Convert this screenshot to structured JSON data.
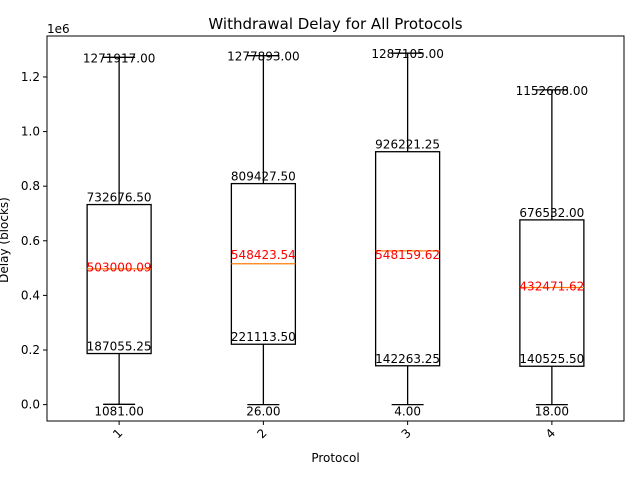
{
  "chart_data": {
    "type": "box",
    "title": "Withdrawal Delay for All Protocols",
    "xlabel": "Protocol",
    "ylabel": "Delay (blocks)",
    "y_scale_label": "1e6",
    "ylim": [
      -60000,
      1350000
    ],
    "y_ticks": [
      0,
      200000,
      400000,
      600000,
      800000,
      1000000,
      1200000
    ],
    "y_tick_labels": [
      "0.0",
      "0.2",
      "0.4",
      "0.6",
      "0.8",
      "1.0",
      "1.2"
    ],
    "grid": false,
    "categories": [
      "1",
      "2",
      "3",
      "4"
    ],
    "boxes": [
      {
        "category": "1",
        "min": 1081.0,
        "q1": 187055.25,
        "median": 497000,
        "q3": 732676.5,
        "max": 1271917.0,
        "mean": 503000.09,
        "min_label": "1081.00",
        "q1_label": "187055.25",
        "mean_label": "503000.09",
        "q3_label": "732676.50",
        "max_label": "1271917.00"
      },
      {
        "category": "2",
        "min": 26.0,
        "q1": 221113.5,
        "median": 516000,
        "q3": 809427.5,
        "max": 1277893.0,
        "mean": 548423.54,
        "min_label": "26.00",
        "q1_label": "221113.50",
        "mean_label": "548423.54",
        "q3_label": "809427.50",
        "max_label": "1277893.00"
      },
      {
        "category": "3",
        "min": 4.0,
        "q1": 142263.25,
        "median": 563000,
        "q3": 926221.25,
        "max": 1287105.0,
        "mean": 548159.62,
        "min_label": "4.00",
        "q1_label": "142263.25",
        "mean_label": "548159.62",
        "q3_label": "926221.25",
        "max_label": "1287105.00"
      },
      {
        "category": "4",
        "min": 18.0,
        "q1": 140525.5,
        "median": 429000,
        "q3": 676532.0,
        "max": 1152668.0,
        "mean": 432471.62,
        "min_label": "18.00",
        "q1_label": "140525.50",
        "mean_label": "432471.62",
        "q3_label": "676532.00",
        "max_label": "1152668.00"
      }
    ],
    "colors": {
      "box": "#000000",
      "median": "#ff7f0e",
      "mean_label": "#ff0000",
      "text": "#000000"
    }
  }
}
